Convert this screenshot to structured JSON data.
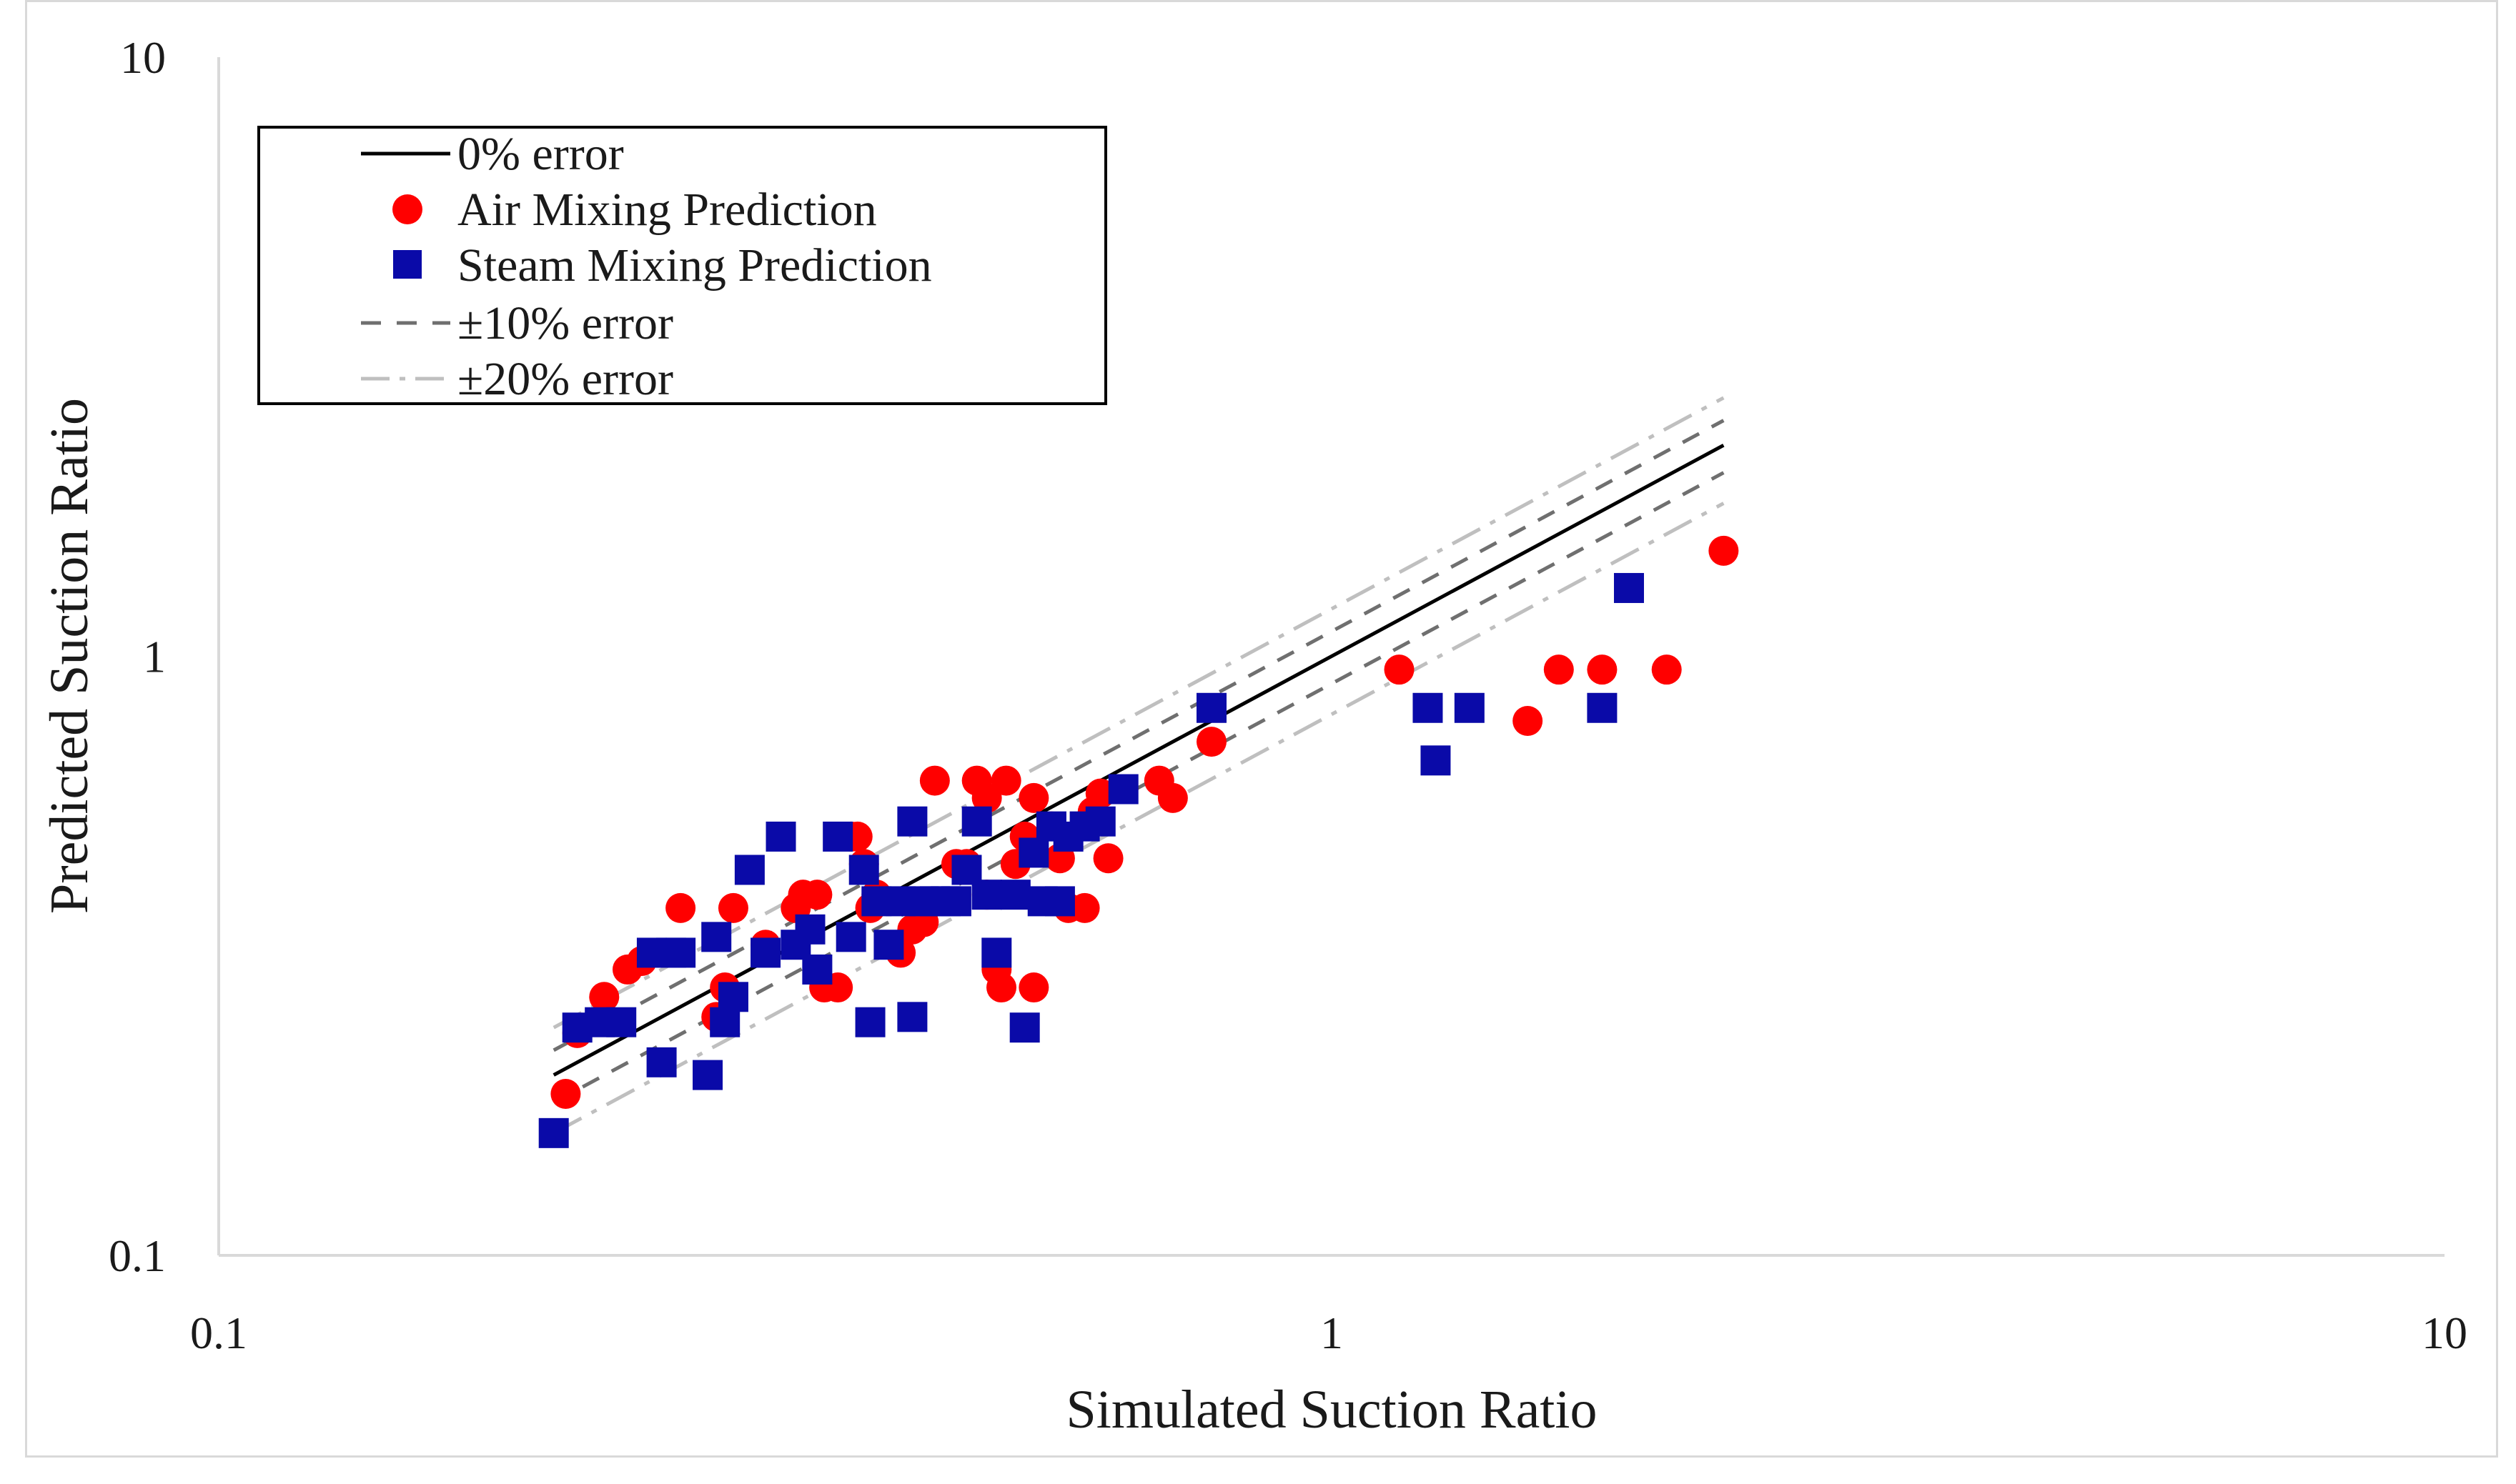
{
  "chart_data": {
    "type": "scatter",
    "scale": "log-log",
    "xlabel": "Simulated Suction Ratio",
    "ylabel": "Predicted Suction Ratio",
    "xlim": [
      0.1,
      10
    ],
    "ylim": [
      0.1,
      10
    ],
    "x_ticks": [
      {
        "value": 0.1,
        "label": "0.1"
      },
      {
        "value": 1,
        "label": "1"
      },
      {
        "value": 10,
        "label": "10"
      }
    ],
    "y_ticks": [
      {
        "value": 0.1,
        "label": "0.1"
      },
      {
        "value": 1,
        "label": "1"
      },
      {
        "value": 10,
        "label": "10"
      }
    ],
    "legend": {
      "placement": "top-left",
      "entries": [
        {
          "label": "0% error",
          "kind": "line",
          "style": "solid",
          "color": "#000000"
        },
        {
          "label": "Air Mixing Prediction",
          "kind": "marker",
          "marker": "circle",
          "color": "#ff0000"
        },
        {
          "label": "Steam Mixing Prediction",
          "kind": "marker",
          "marker": "square",
          "color": "#0a0aa8"
        },
        {
          "label": "±10% error",
          "kind": "line",
          "style": "dash",
          "color": "#6f6f6f"
        },
        {
          "label": "±20% error",
          "kind": "line",
          "style": "dashdot",
          "color": "#bfbfbf"
        }
      ]
    },
    "reference_lines": {
      "x_range": [
        0.2,
        2.25
      ],
      "lines": [
        {
          "name": "0% error",
          "factor": 1.0,
          "style": "solid",
          "color": "#000000"
        },
        {
          "name": "+10% error",
          "factor": 1.1,
          "style": "dash",
          "color": "#6f6f6f"
        },
        {
          "name": "-10% error",
          "factor": 0.9,
          "style": "dash",
          "color": "#6f6f6f"
        },
        {
          "name": "+20% error",
          "factor": 1.2,
          "style": "dashdot",
          "color": "#bfbfbf"
        },
        {
          "name": "-20% error",
          "factor": 0.8,
          "style": "dashdot",
          "color": "#bfbfbf"
        }
      ]
    },
    "series": [
      {
        "name": "Air Mixing Prediction",
        "marker": "circle",
        "color": "#ff0000",
        "points": [
          [
            0.205,
            0.186
          ],
          [
            0.21,
            0.235
          ],
          [
            0.222,
            0.27
          ],
          [
            0.233,
            0.3
          ],
          [
            0.24,
            0.31
          ],
          [
            0.26,
            0.38
          ],
          [
            0.28,
            0.25
          ],
          [
            0.285,
            0.28
          ],
          [
            0.29,
            0.38
          ],
          [
            0.31,
            0.33
          ],
          [
            0.33,
            0.38
          ],
          [
            0.335,
            0.4
          ],
          [
            0.345,
            0.4
          ],
          [
            0.35,
            0.28
          ],
          [
            0.36,
            0.28
          ],
          [
            0.37,
            0.5
          ],
          [
            0.375,
            0.5
          ],
          [
            0.38,
            0.45
          ],
          [
            0.385,
            0.38
          ],
          [
            0.39,
            0.4
          ],
          [
            0.41,
            0.32
          ],
          [
            0.42,
            0.35
          ],
          [
            0.43,
            0.36
          ],
          [
            0.44,
            0.62
          ],
          [
            0.46,
            0.45
          ],
          [
            0.47,
            0.45
          ],
          [
            0.48,
            0.62
          ],
          [
            0.49,
            0.4
          ],
          [
            0.49,
            0.58
          ],
          [
            0.5,
            0.3
          ],
          [
            0.505,
            0.28
          ],
          [
            0.51,
            0.62
          ],
          [
            0.52,
            0.45
          ],
          [
            0.53,
            0.5
          ],
          [
            0.54,
            0.58
          ],
          [
            0.54,
            0.28
          ],
          [
            0.56,
            0.52
          ],
          [
            0.57,
            0.46
          ],
          [
            0.58,
            0.38
          ],
          [
            0.6,
            0.38
          ],
          [
            0.61,
            0.55
          ],
          [
            0.62,
            0.59
          ],
          [
            0.63,
            0.46
          ],
          [
            0.65,
            0.6
          ],
          [
            0.7,
            0.62
          ],
          [
            0.72,
            0.58
          ],
          [
            0.78,
            0.72
          ],
          [
            1.15,
            0.95
          ],
          [
            1.5,
            0.78
          ],
          [
            1.6,
            0.95
          ],
          [
            1.75,
            0.95
          ],
          [
            2.0,
            0.95
          ],
          [
            2.25,
            1.5
          ]
        ]
      },
      {
        "name": "Steam Mixing Prediction",
        "marker": "square",
        "color": "#0a0aa8",
        "points": [
          [
            0.2,
            0.16
          ],
          [
            0.21,
            0.24
          ],
          [
            0.22,
            0.245
          ],
          [
            0.23,
            0.245
          ],
          [
            0.245,
            0.32
          ],
          [
            0.25,
            0.21
          ],
          [
            0.255,
            0.32
          ],
          [
            0.26,
            0.32
          ],
          [
            0.275,
            0.2
          ],
          [
            0.28,
            0.34
          ],
          [
            0.285,
            0.245
          ],
          [
            0.29,
            0.27
          ],
          [
            0.3,
            0.44
          ],
          [
            0.31,
            0.32
          ],
          [
            0.32,
            0.5
          ],
          [
            0.33,
            0.33
          ],
          [
            0.34,
            0.35
          ],
          [
            0.345,
            0.3
          ],
          [
            0.36,
            0.5
          ],
          [
            0.37,
            0.34
          ],
          [
            0.38,
            0.44
          ],
          [
            0.385,
            0.245
          ],
          [
            0.39,
            0.39
          ],
          [
            0.4,
            0.33
          ],
          [
            0.41,
            0.39
          ],
          [
            0.42,
            0.53
          ],
          [
            0.42,
            0.25
          ],
          [
            0.43,
            0.39
          ],
          [
            0.44,
            0.39
          ],
          [
            0.45,
            0.39
          ],
          [
            0.46,
            0.39
          ],
          [
            0.47,
            0.44
          ],
          [
            0.48,
            0.53
          ],
          [
            0.49,
            0.4
          ],
          [
            0.5,
            0.32
          ],
          [
            0.52,
            0.4
          ],
          [
            0.53,
            0.24
          ],
          [
            0.54,
            0.47
          ],
          [
            0.55,
            0.39
          ],
          [
            0.56,
            0.52
          ],
          [
            0.57,
            0.39
          ],
          [
            0.58,
            0.5
          ],
          [
            0.6,
            0.52
          ],
          [
            0.62,
            0.53
          ],
          [
            0.65,
            0.6
          ],
          [
            0.78,
            0.82
          ],
          [
            1.22,
            0.82
          ],
          [
            1.24,
            0.67
          ],
          [
            1.33,
            0.82
          ],
          [
            1.75,
            0.82
          ],
          [
            1.85,
            1.3
          ]
        ]
      }
    ]
  }
}
